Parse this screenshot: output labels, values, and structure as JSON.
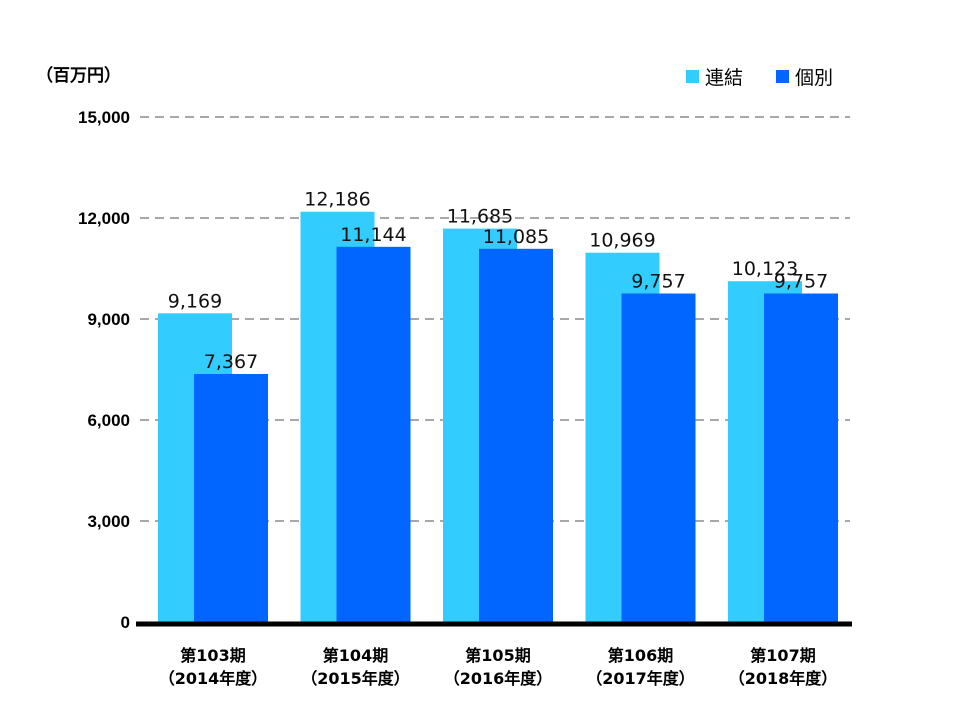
{
  "chart_data": {
    "type": "bar",
    "unit_label": "（百万円）",
    "categories": [
      [
        "第103期",
        "（2014年度）"
      ],
      [
        "第104期",
        "（2015年度）"
      ],
      [
        "第105期",
        "（2016年度）"
      ],
      [
        "第106期",
        "（2017年度）"
      ],
      [
        "第107期",
        "（2018年度）"
      ]
    ],
    "series": [
      {
        "name": "連結",
        "values": [
          9169,
          12186,
          11685,
          10969,
          10123
        ],
        "labels": [
          "9,169",
          "12,186",
          "11,685",
          "10,969",
          "10,123"
        ],
        "color": "#33CCFF"
      },
      {
        "name": "個別",
        "values": [
          7367,
          11144,
          11085,
          9757,
          9757
        ],
        "labels": [
          "7,367",
          "11,144",
          "11,085",
          "9,757",
          "9,757"
        ],
        "color": "#0066FF"
      }
    ],
    "y_ticks": [
      "0",
      "3,000",
      "6,000",
      "9,000",
      "12,000",
      "15,000"
    ],
    "y_tick_values": [
      0,
      3000,
      6000,
      9000,
      12000,
      15000
    ],
    "ylim": [
      0,
      15000
    ],
    "grid": "dashed horizontal",
    "legend_position": "top-right"
  }
}
